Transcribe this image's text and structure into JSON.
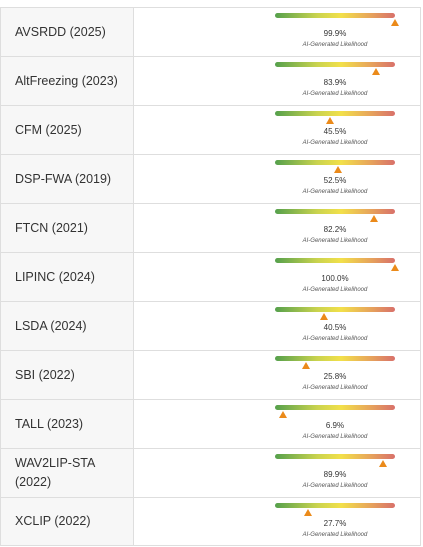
{
  "caption": "AI-Generated Likelihood",
  "colors": {
    "marker": "#eb8a1a",
    "gradient_low": "#55a04c",
    "gradient_mid": "#f2e04a",
    "gradient_high": "#d8706a"
  },
  "rows": [
    {
      "name": "AVSRDD (2025)",
      "value_label": "99.9%",
      "likelihood": 99.9
    },
    {
      "name": "AltFreezing (2023)",
      "value_label": "83.9%",
      "likelihood": 83.9
    },
    {
      "name": "CFM (2025)",
      "value_label": "45.5%",
      "likelihood": 45.5
    },
    {
      "name": "DSP-FWA (2019)",
      "value_label": "52.5%",
      "likelihood": 52.5
    },
    {
      "name": "FTCN (2021)",
      "value_label": "82.2%",
      "likelihood": 82.2
    },
    {
      "name": "LIPINC (2024)",
      "value_label": "100.0%",
      "likelihood": 100.0
    },
    {
      "name": "LSDA (2024)",
      "value_label": "40.5%",
      "likelihood": 40.5
    },
    {
      "name": "SBI (2022)",
      "value_label": "25.8%",
      "likelihood": 25.8
    },
    {
      "name": "TALL (2023)",
      "value_label": "6.9%",
      "likelihood": 6.9
    },
    {
      "name": "WAV2LIP-STA (2022)",
      "value_label": "89.9%",
      "likelihood": 89.9
    },
    {
      "name": "XCLIP (2022)",
      "value_label": "27.7%",
      "likelihood": 27.7
    }
  ]
}
